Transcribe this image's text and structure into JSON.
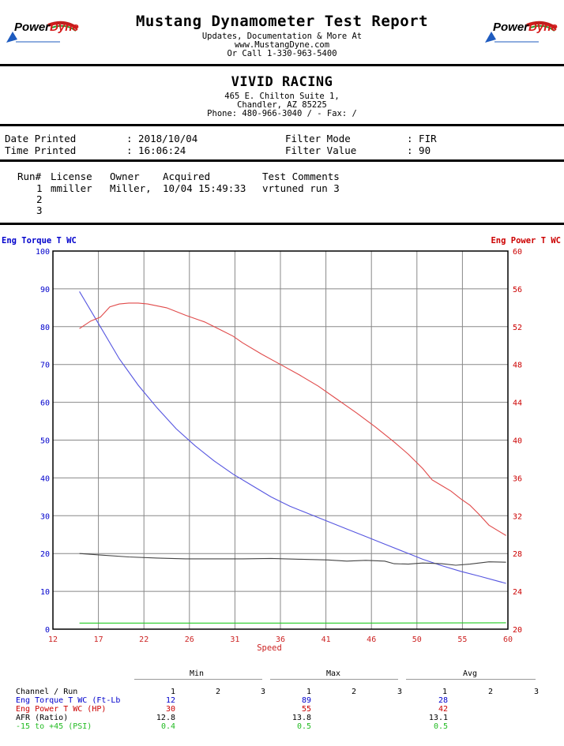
{
  "header": {
    "title": "Mustang Dynamometer Test Report",
    "lines": [
      "Updates, Documentation & More At",
      "www.MustangDyne.com",
      "Or Call 1-330-963-5400"
    ],
    "logo": {
      "text_a": "Power",
      "text_b": "Dyne"
    }
  },
  "shop": {
    "name": "VIVID RACING",
    "address1": "465 E. Chilton Suite 1,",
    "address2": "Chandler, AZ  85225",
    "phone": "Phone: 480-966-3040 /  - Fax:  /"
  },
  "info": {
    "date_label": "Date Printed",
    "date_value": ": 2018/10/04",
    "time_label": "Time Printed",
    "time_value": ": 16:06:24",
    "filter_mode_label": "Filter Mode",
    "filter_mode_value": ": FIR",
    "filter_value_label": "Filter Value",
    "filter_value_value": ": 90"
  },
  "runs": {
    "headers": [
      "Run#",
      "License",
      "Owner",
      "Acquired",
      "Test Comments"
    ],
    "rows": [
      {
        "run": "1",
        "license": "mmiller",
        "owner": "Miller,",
        "acquired": "10/04 15:49:33",
        "comments": "vrtuned run 3"
      },
      {
        "run": "2",
        "license": "",
        "owner": "",
        "acquired": "",
        "comments": ""
      },
      {
        "run": "3",
        "license": "",
        "owner": "",
        "acquired": "",
        "comments": ""
      }
    ]
  },
  "chart_data": {
    "type": "line",
    "xlabel": "Speed",
    "ylabel_left": "Eng Torque T WC",
    "ylabel_right": "Eng Power T WC",
    "xlim": [
      12,
      60
    ],
    "ylim_left": [
      0,
      100
    ],
    "ylim_right": [
      20,
      60
    ],
    "x_ticks": [
      12,
      17,
      22,
      26,
      31,
      36,
      41,
      46,
      50,
      55,
      60
    ],
    "y_ticks_left": [
      0,
      10,
      20,
      30,
      40,
      50,
      60,
      70,
      80,
      90,
      100
    ],
    "y_ticks_right": [
      20,
      24,
      28,
      32,
      36,
      40,
      44,
      48,
      52,
      56,
      60
    ],
    "grid": true,
    "colors": {
      "torque": "#5555e0",
      "power": "#e04a4a",
      "afr": "#444444",
      "boost": "#22cc22",
      "left_axis": "#0000cc",
      "right_axis": "#cc0000",
      "x_axis": "#cc2222"
    },
    "series": [
      {
        "key": "torque",
        "axis": "left",
        "x": [
          14.8,
          17,
          19,
          21,
          23,
          25,
          27,
          29,
          31,
          33,
          35,
          37,
          39,
          41,
          43,
          45,
          47,
          49,
          51,
          53,
          55,
          57,
          59.8
        ],
        "y": [
          89.3,
          80,
          71.5,
          64.5,
          58.5,
          53,
          48.5,
          44.5,
          41,
          38,
          35,
          32.5,
          30.5,
          28.5,
          26.5,
          24.5,
          22.5,
          20.5,
          18.5,
          16.8,
          15.3,
          14,
          12.1
        ]
      },
      {
        "key": "power",
        "axis": "right",
        "x": [
          14.8,
          16,
          17,
          18,
          19,
          20,
          21,
          22,
          24,
          26,
          28,
          30,
          31,
          32,
          34,
          36,
          38,
          40,
          42,
          44,
          46,
          48,
          49.5,
          51,
          52,
          53,
          54,
          55,
          56,
          57,
          58,
          59.8
        ],
        "y": [
          51.8,
          52.6,
          53,
          54.1,
          54.4,
          54.5,
          54.5,
          54.4,
          54,
          53.2,
          52.5,
          51.5,
          51,
          50.3,
          49.1,
          48,
          46.9,
          45.7,
          44.3,
          42.9,
          41.4,
          39.8,
          38.5,
          37,
          35.8,
          35.2,
          34.6,
          33.8,
          33.1,
          32.1,
          31,
          29.9
        ]
      },
      {
        "key": "afr",
        "axis": "left",
        "x": [
          14.8,
          17,
          20,
          23,
          26,
          29,
          32,
          35,
          38,
          41,
          43,
          45,
          47,
          48,
          49.5,
          51,
          53,
          54.5,
          56,
          58,
          59.8
        ],
        "y": [
          20,
          19.6,
          19.1,
          18.8,
          18.6,
          18.6,
          18.6,
          18.7,
          18.5,
          18.3,
          18,
          18.2,
          18,
          17.3,
          17.2,
          17.5,
          17.3,
          16.9,
          17.2,
          17.8,
          17.7
        ]
      },
      {
        "key": "boost",
        "axis": "left",
        "x": [
          14.8,
          30,
          45,
          59.8
        ],
        "y": [
          1.6,
          1.6,
          1.6,
          1.7
        ]
      }
    ]
  },
  "summary": {
    "groups": [
      "Min",
      "Max",
      "Avg"
    ],
    "header_label": "Channel / Run",
    "run_cols": [
      "1",
      "2",
      "3"
    ],
    "rows": [
      {
        "label": "Eng Torque T WC (Ft-Lb",
        "min": "12",
        "max": "89",
        "avg": "28",
        "color": "#0000cc"
      },
      {
        "label": "Eng Power T WC (HP)",
        "min": "30",
        "max": "55",
        "avg": "42",
        "color": "#cc0000"
      },
      {
        "label": "AFR (Ratio)",
        "min": "12.8",
        "max": "13.8",
        "avg": "13.1",
        "color": "#000000"
      },
      {
        "label": "-15 to +45 (PSI)",
        "min": "0.4",
        "max": "0.5",
        "avg": "0.5",
        "color": "#22bb22"
      }
    ]
  }
}
